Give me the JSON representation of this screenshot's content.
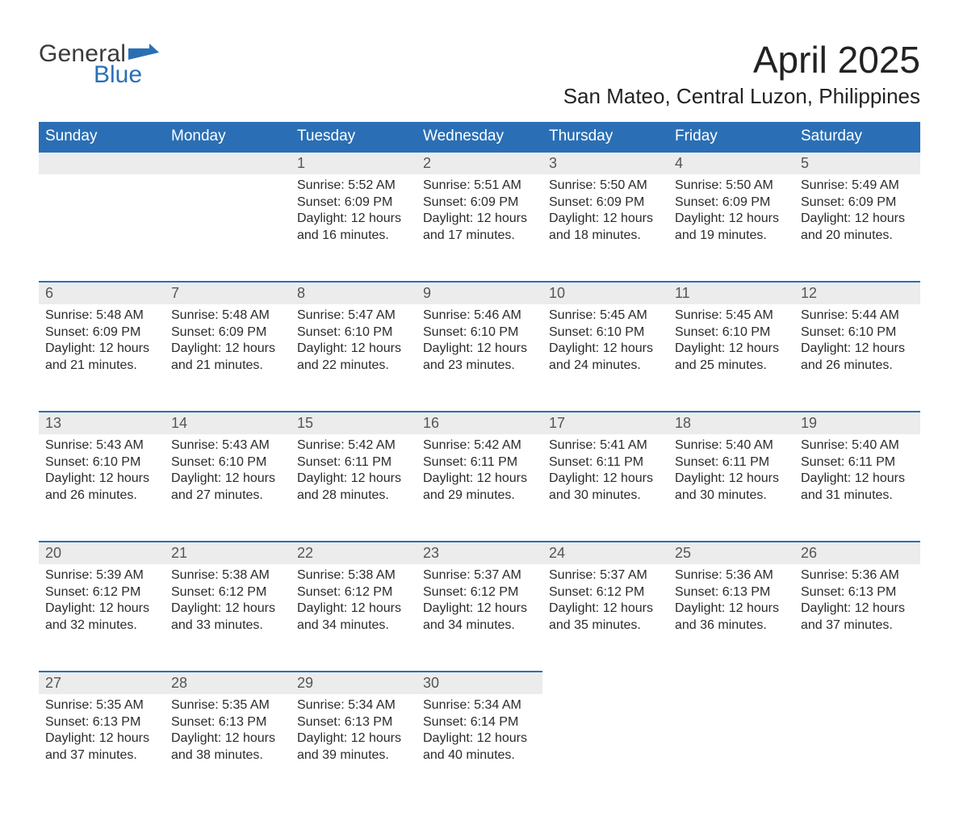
{
  "brand": {
    "part1": "General",
    "part2": "Blue",
    "color1": "#3a3a3a",
    "color2": "#2a6fb5"
  },
  "title": "April 2025",
  "location": "San Mateo, Central Luzon, Philippines",
  "colors": {
    "header_bg": "#2a6fb5",
    "header_text": "#ffffff",
    "daynum_bg": "#ececec",
    "daynum_text": "#555555",
    "row_divider": "#2a6fb5",
    "body_text": "#2b2b2b",
    "page_bg": "#ffffff"
  },
  "typography": {
    "month_title_fontsize": 46,
    "location_fontsize": 26,
    "weekday_fontsize": 19,
    "daynum_fontsize": 18,
    "body_fontsize": 16
  },
  "layout": {
    "columns": 7,
    "rows": 5,
    "first_day_column_index": 2
  },
  "weekdays": [
    "Sunday",
    "Monday",
    "Tuesday",
    "Wednesday",
    "Thursday",
    "Friday",
    "Saturday"
  ],
  "labels": {
    "sunrise": "Sunrise:",
    "sunset": "Sunset:",
    "daylight": "Daylight:"
  },
  "days": [
    {
      "n": "1",
      "sr": "5:52 AM",
      "ss": "6:09 PM",
      "dl": "12 hours and 16 minutes."
    },
    {
      "n": "2",
      "sr": "5:51 AM",
      "ss": "6:09 PM",
      "dl": "12 hours and 17 minutes."
    },
    {
      "n": "3",
      "sr": "5:50 AM",
      "ss": "6:09 PM",
      "dl": "12 hours and 18 minutes."
    },
    {
      "n": "4",
      "sr": "5:50 AM",
      "ss": "6:09 PM",
      "dl": "12 hours and 19 minutes."
    },
    {
      "n": "5",
      "sr": "5:49 AM",
      "ss": "6:09 PM",
      "dl": "12 hours and 20 minutes."
    },
    {
      "n": "6",
      "sr": "5:48 AM",
      "ss": "6:09 PM",
      "dl": "12 hours and 21 minutes."
    },
    {
      "n": "7",
      "sr": "5:48 AM",
      "ss": "6:09 PM",
      "dl": "12 hours and 21 minutes."
    },
    {
      "n": "8",
      "sr": "5:47 AM",
      "ss": "6:10 PM",
      "dl": "12 hours and 22 minutes."
    },
    {
      "n": "9",
      "sr": "5:46 AM",
      "ss": "6:10 PM",
      "dl": "12 hours and 23 minutes."
    },
    {
      "n": "10",
      "sr": "5:45 AM",
      "ss": "6:10 PM",
      "dl": "12 hours and 24 minutes."
    },
    {
      "n": "11",
      "sr": "5:45 AM",
      "ss": "6:10 PM",
      "dl": "12 hours and 25 minutes."
    },
    {
      "n": "12",
      "sr": "5:44 AM",
      "ss": "6:10 PM",
      "dl": "12 hours and 26 minutes."
    },
    {
      "n": "13",
      "sr": "5:43 AM",
      "ss": "6:10 PM",
      "dl": "12 hours and 26 minutes."
    },
    {
      "n": "14",
      "sr": "5:43 AM",
      "ss": "6:10 PM",
      "dl": "12 hours and 27 minutes."
    },
    {
      "n": "15",
      "sr": "5:42 AM",
      "ss": "6:11 PM",
      "dl": "12 hours and 28 minutes."
    },
    {
      "n": "16",
      "sr": "5:42 AM",
      "ss": "6:11 PM",
      "dl": "12 hours and 29 minutes."
    },
    {
      "n": "17",
      "sr": "5:41 AM",
      "ss": "6:11 PM",
      "dl": "12 hours and 30 minutes."
    },
    {
      "n": "18",
      "sr": "5:40 AM",
      "ss": "6:11 PM",
      "dl": "12 hours and 30 minutes."
    },
    {
      "n": "19",
      "sr": "5:40 AM",
      "ss": "6:11 PM",
      "dl": "12 hours and 31 minutes."
    },
    {
      "n": "20",
      "sr": "5:39 AM",
      "ss": "6:12 PM",
      "dl": "12 hours and 32 minutes."
    },
    {
      "n": "21",
      "sr": "5:38 AM",
      "ss": "6:12 PM",
      "dl": "12 hours and 33 minutes."
    },
    {
      "n": "22",
      "sr": "5:38 AM",
      "ss": "6:12 PM",
      "dl": "12 hours and 34 minutes."
    },
    {
      "n": "23",
      "sr": "5:37 AM",
      "ss": "6:12 PM",
      "dl": "12 hours and 34 minutes."
    },
    {
      "n": "24",
      "sr": "5:37 AM",
      "ss": "6:12 PM",
      "dl": "12 hours and 35 minutes."
    },
    {
      "n": "25",
      "sr": "5:36 AM",
      "ss": "6:13 PM",
      "dl": "12 hours and 36 minutes."
    },
    {
      "n": "26",
      "sr": "5:36 AM",
      "ss": "6:13 PM",
      "dl": "12 hours and 37 minutes."
    },
    {
      "n": "27",
      "sr": "5:35 AM",
      "ss": "6:13 PM",
      "dl": "12 hours and 37 minutes."
    },
    {
      "n": "28",
      "sr": "5:35 AM",
      "ss": "6:13 PM",
      "dl": "12 hours and 38 minutes."
    },
    {
      "n": "29",
      "sr": "5:34 AM",
      "ss": "6:13 PM",
      "dl": "12 hours and 39 minutes."
    },
    {
      "n": "30",
      "sr": "5:34 AM",
      "ss": "6:14 PM",
      "dl": "12 hours and 40 minutes."
    }
  ]
}
